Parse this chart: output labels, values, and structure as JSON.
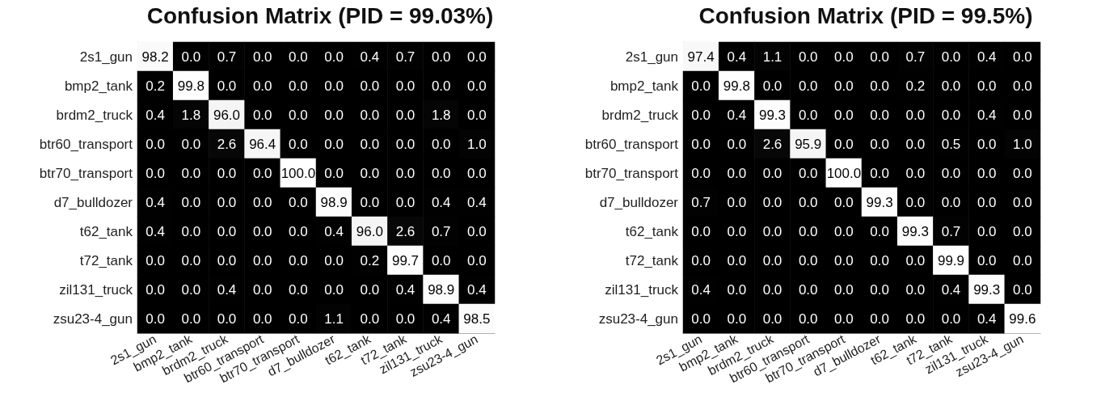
{
  "chart_data": [
    {
      "type": "heatmap",
      "title": "Confusion Matrix (PID = 99.03%)",
      "categories": [
        "2s1_gun",
        "bmp2_tank",
        "brdm2_truck",
        "btr60_transport",
        "btr70_transport",
        "d7_bulldozer",
        "t62_tank",
        "t72_tank",
        "zil131_truck",
        "zsu23-4_gun"
      ],
      "y_categories": [
        "2s1_gun",
        "bmp2_tank",
        "brdm2_truck",
        "btr60_transport",
        "btr70_transport",
        "d7_bulldozer",
        "t62_tank",
        "t72_tank",
        "zil131_truck",
        "zsu23-4_gun"
      ],
      "cells": [
        [
          98.2,
          0.0,
          0.7,
          0.0,
          0.0,
          0.0,
          0.4,
          0.7,
          0.0,
          0.0
        ],
        [
          0.2,
          99.8,
          0.0,
          0.0,
          0.0,
          0.0,
          0.0,
          0.0,
          0.0,
          0.0
        ],
        [
          0.4,
          1.8,
          96.0,
          0.0,
          0.0,
          0.0,
          0.0,
          0.0,
          1.8,
          0.0
        ],
        [
          0.0,
          0.0,
          2.6,
          96.4,
          0.0,
          0.0,
          0.0,
          0.0,
          0.0,
          1.0
        ],
        [
          0.0,
          0.0,
          0.0,
          0.0,
          100.0,
          0.0,
          0.0,
          0.0,
          0.0,
          0.0
        ],
        [
          0.4,
          0.0,
          0.0,
          0.0,
          0.0,
          98.9,
          0.0,
          0.0,
          0.4,
          0.4
        ],
        [
          0.4,
          0.0,
          0.0,
          0.0,
          0.0,
          0.4,
          96.0,
          2.6,
          0.7,
          0.0
        ],
        [
          0.0,
          0.0,
          0.0,
          0.0,
          0.0,
          0.0,
          0.2,
          99.7,
          0.0,
          0.0
        ],
        [
          0.0,
          0.0,
          0.4,
          0.0,
          0.0,
          0.0,
          0.0,
          0.4,
          98.9,
          0.4
        ],
        [
          0.0,
          0.0,
          0.0,
          0.0,
          0.0,
          1.1,
          0.0,
          0.0,
          0.4,
          98.5
        ]
      ],
      "cell_labels": [
        [
          "98.2",
          "0.0",
          "0.7",
          "0.0",
          "0.0",
          "0.0",
          "0.4",
          "0.7",
          "0.0",
          "0.0"
        ],
        [
          "0.2",
          "99.8",
          "0.0",
          "0.0",
          "0.0",
          "0.0",
          "0.0",
          "0.0",
          "0.0",
          "0.0"
        ],
        [
          "0.4",
          "1.8",
          "96.0",
          "0.0",
          "0.0",
          "0.0",
          "0.0",
          "0.0",
          "1.8",
          "0.0"
        ],
        [
          "0.0",
          "0.0",
          "2.6",
          "96.4",
          "0.0",
          "0.0",
          "0.0",
          "0.0",
          "0.0",
          "1.0"
        ],
        [
          "0.0",
          "0.0",
          "0.0",
          "0.0",
          "100.0",
          "0.0",
          "0.0",
          "0.0",
          "0.0",
          "0.0"
        ],
        [
          "0.4",
          "0.0",
          "0.0",
          "0.0",
          "0.0",
          "98.9",
          "0.0",
          "0.0",
          "0.4",
          "0.4"
        ],
        [
          "0.4",
          "0.0",
          "0.0",
          "0.0",
          "0.0",
          "0.4",
          "96.0",
          "2.6",
          "0.7",
          "0.0"
        ],
        [
          "0.0",
          "0.0",
          "0.0",
          "0.0",
          "0.0",
          "0.0",
          "0.2",
          "99.7",
          "0.0",
          "0.0"
        ],
        [
          "0.0",
          "0.0",
          "0.4",
          "0.0",
          "0.0",
          "0.0",
          "0.0",
          "0.4",
          "98.9",
          "0.4"
        ],
        [
          "0.0",
          "0.0",
          "0.0",
          "0.0",
          "0.0",
          "1.1",
          "0.0",
          "0.0",
          "0.4",
          "98.5"
        ]
      ]
    },
    {
      "type": "heatmap",
      "title": "Confusion Matrix (PID = 99.5%)",
      "categories": [
        "2s1_gun",
        "bmp2_tank",
        "brdm2_truck",
        "btr60_transport",
        "btr70_transport",
        "d7_bulldozer",
        "t62_tank",
        "t72_tank",
        "zil131_truck",
        "zsu23-4_gun"
      ],
      "y_categories": [
        "2s1_gun",
        "bmp2_tank",
        "brdm2_truck",
        "btr60_transport",
        "btr70_transport",
        "d7_bulldozer",
        "t62_tank",
        "t72_tank",
        "zil131_truck",
        "zsu23-4_gun"
      ],
      "cells": [
        [
          97.4,
          0.4,
          1.1,
          0.0,
          0.0,
          0.0,
          0.7,
          0.0,
          0.4,
          0.0
        ],
        [
          0.0,
          99.8,
          0.0,
          0.0,
          0.0,
          0.0,
          0.2,
          0.0,
          0.0,
          0.0
        ],
        [
          0.0,
          0.4,
          99.3,
          0.0,
          0.0,
          0.0,
          0.0,
          0.0,
          0.4,
          0.0
        ],
        [
          0.0,
          0.0,
          2.6,
          95.9,
          0.0,
          0.0,
          0.0,
          0.5,
          0.0,
          1.0
        ],
        [
          0.0,
          0.0,
          0.0,
          0.0,
          100.0,
          0.0,
          0.0,
          0.0,
          0.0,
          0.0
        ],
        [
          0.7,
          0.0,
          0.0,
          0.0,
          0.0,
          99.3,
          0.0,
          0.0,
          0.0,
          0.0
        ],
        [
          0.0,
          0.0,
          0.0,
          0.0,
          0.0,
          0.0,
          99.3,
          0.7,
          0.0,
          0.0
        ],
        [
          0.0,
          0.0,
          0.0,
          0.0,
          0.0,
          0.0,
          0.0,
          99.9,
          0.0,
          0.0
        ],
        [
          0.4,
          0.0,
          0.0,
          0.0,
          0.0,
          0.0,
          0.0,
          0.4,
          99.3,
          0.0
        ],
        [
          0.0,
          0.0,
          0.0,
          0.0,
          0.0,
          0.0,
          0.0,
          0.0,
          0.4,
          99.6
        ]
      ],
      "cell_labels": [
        [
          "97.4",
          "0.4",
          "1.1",
          "0.0",
          "0.0",
          "0.0",
          "0.7",
          "0.0",
          "0.4",
          "0.0"
        ],
        [
          "0.0",
          "99.8",
          "0.0",
          "0.0",
          "0.0",
          "0.0",
          "0.2",
          "0.0",
          "0.0",
          "0.0"
        ],
        [
          "0.0",
          "0.4",
          "99.3",
          "0.0",
          "0.0",
          "0.0",
          "0.0",
          "0.0",
          "0.4",
          "0.0"
        ],
        [
          "0.0",
          "0.0",
          "2.6",
          "95.9",
          "0.0",
          "0.0",
          "0.0",
          "0.5",
          "0.0",
          "1.0"
        ],
        [
          "0.0",
          "0.0",
          "0.0",
          "0.0",
          "100.0",
          "0.0",
          "0.0",
          "0.0",
          "0.0",
          "0.0"
        ],
        [
          "0.7",
          "0.0",
          "0.0",
          "0.0",
          "0.0",
          "99.3",
          "0.0",
          "0.0",
          "0.0",
          "0.0"
        ],
        [
          "0.0",
          "0.0",
          "0.0",
          "0.0",
          "0.0",
          "0.0",
          "99.3",
          "0.7",
          "0.0",
          "0.0"
        ],
        [
          "0.0",
          "0.0",
          "0.0",
          "0.0",
          "0.0",
          "0.0",
          "0.0",
          "99.9",
          "0.0",
          "0.0"
        ],
        [
          "0.4",
          "0.0",
          "0.0",
          "0.0",
          "0.0",
          "0.0",
          "0.0",
          "0.4",
          "99.3",
          "0.0"
        ],
        [
          "0.0",
          "0.0",
          "0.0",
          "0.0",
          "0.0",
          "0.0",
          "0.0",
          "0.0",
          "0.4",
          "99.6"
        ]
      ]
    }
  ]
}
